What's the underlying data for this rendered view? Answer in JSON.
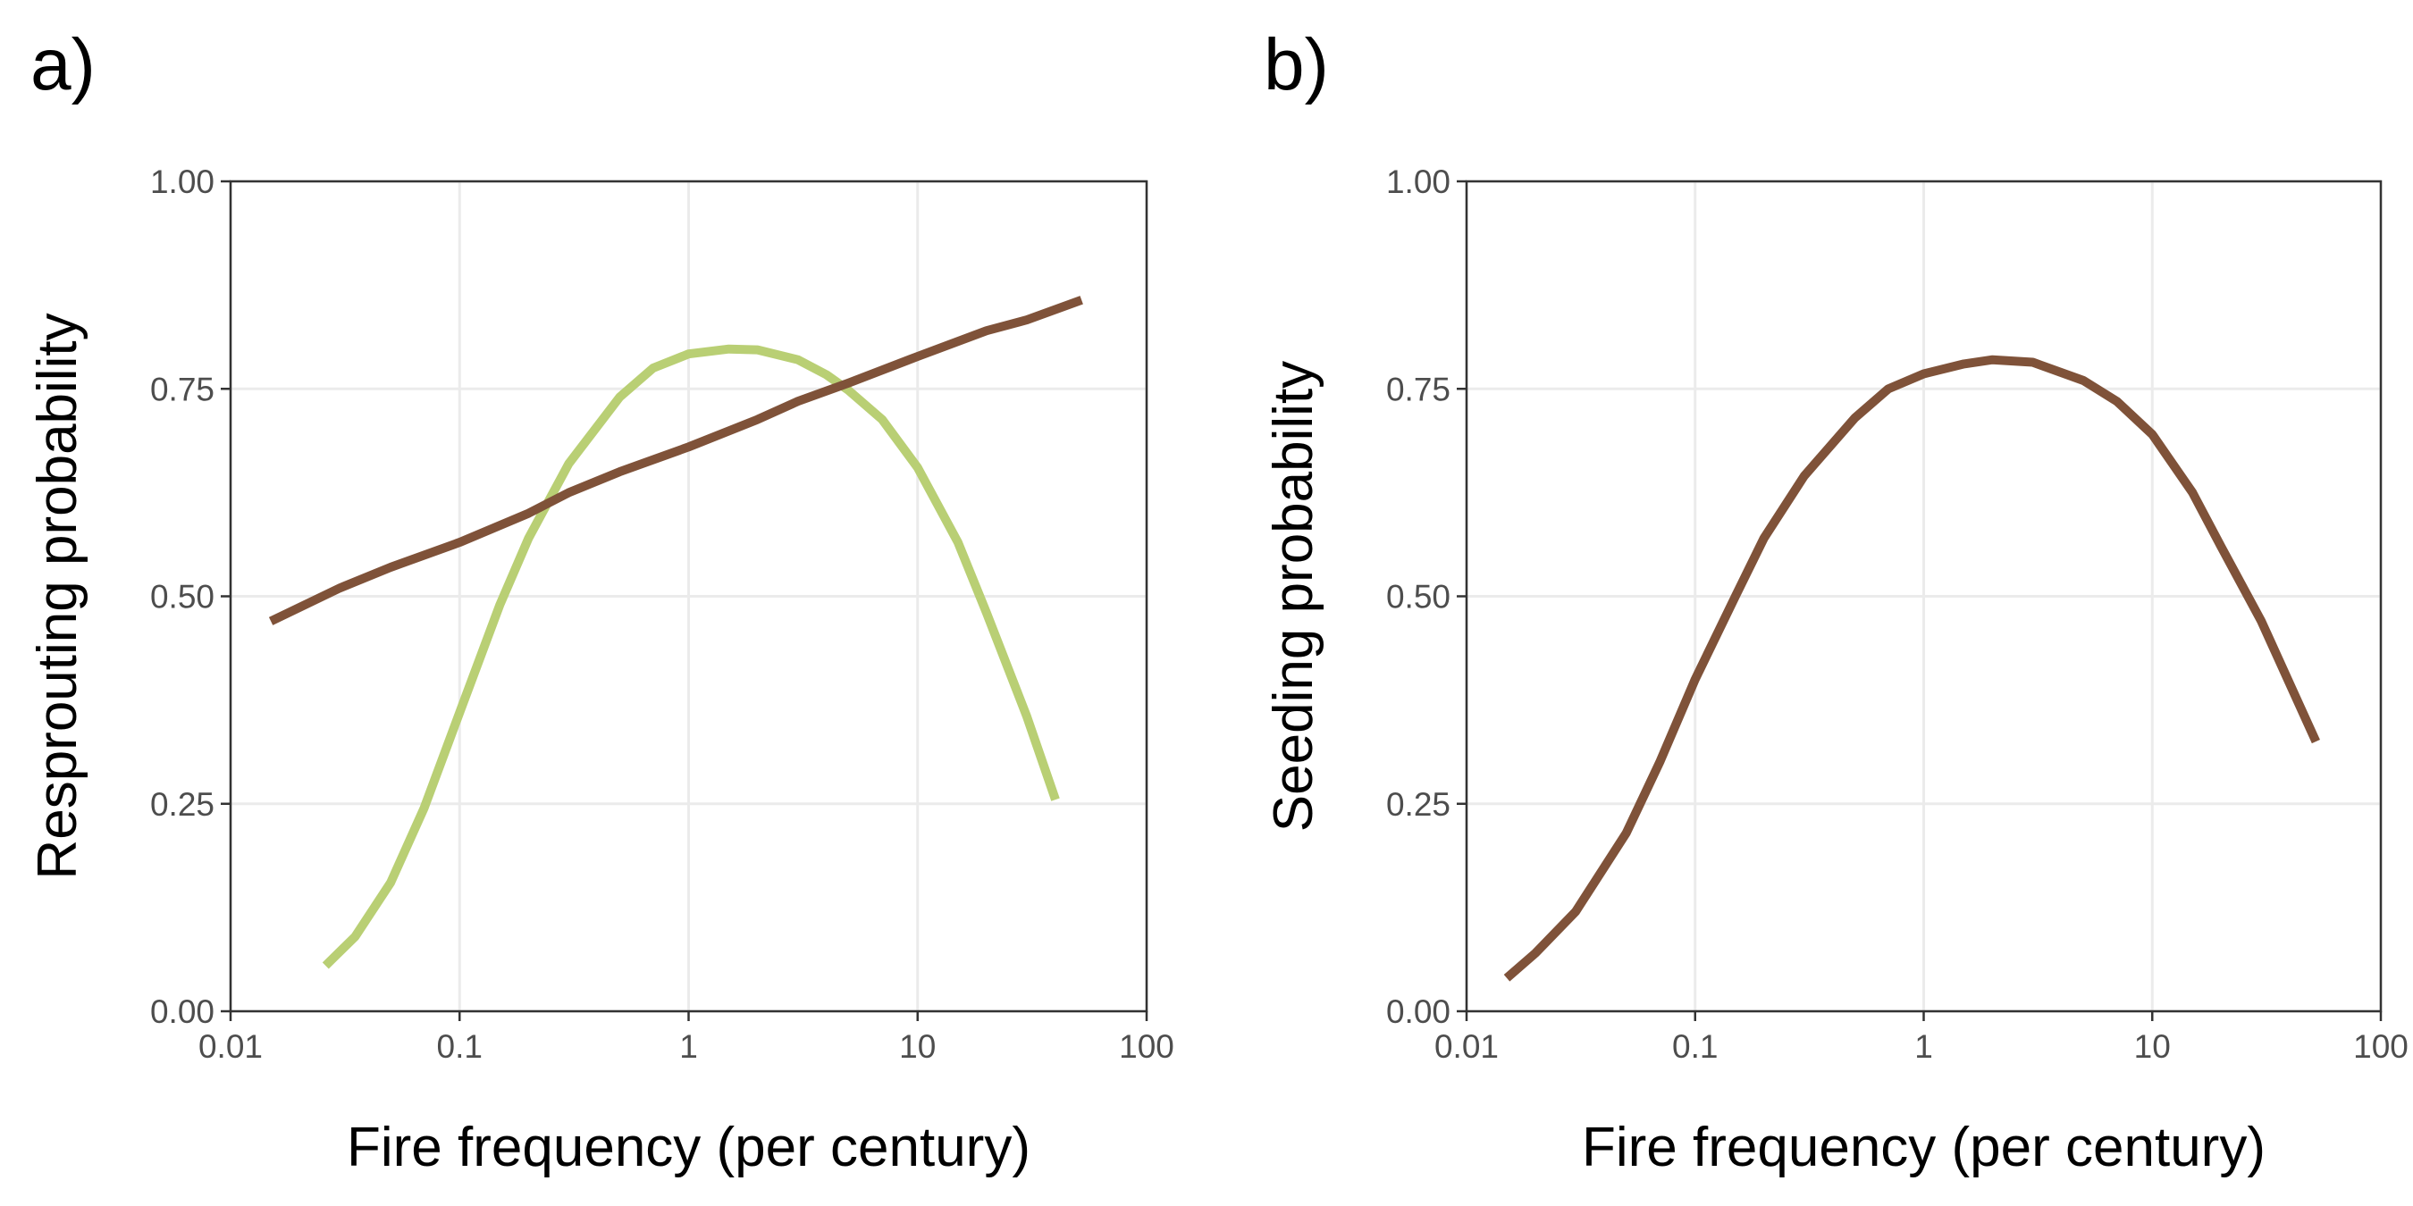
{
  "chart_data": [
    {
      "type": "line",
      "panel_label": "a)",
      "xlabel": "Fire frequency (per century)",
      "ylabel": "Resprouting probability",
      "xscale": "log",
      "xlim": [
        0.01,
        100
      ],
      "ylim": [
        0,
        1
      ],
      "x_ticks": [
        0.01,
        0.1,
        1,
        10,
        100
      ],
      "x_tick_labels": [
        "0.01",
        "0.1",
        "1",
        "10",
        "100"
      ],
      "y_ticks": [
        0,
        0.25,
        0.5,
        0.75,
        1
      ],
      "y_tick_labels": [
        "0.00",
        "0.25",
        "0.50",
        "0.75",
        "1.00"
      ],
      "grid": true,
      "series": [
        {
          "color": "#b9cf74",
          "x": [
            0.026,
            0.035,
            0.05,
            0.07,
            0.1,
            0.15,
            0.2,
            0.3,
            0.5,
            0.7,
            1,
            1.5,
            2,
            3,
            4,
            5,
            7,
            10,
            15,
            20,
            30,
            40
          ],
          "y": [
            0.055,
            0.09,
            0.155,
            0.245,
            0.36,
            0.49,
            0.57,
            0.66,
            0.74,
            0.775,
            0.792,
            0.798,
            0.797,
            0.785,
            0.767,
            0.748,
            0.713,
            0.655,
            0.565,
            0.48,
            0.355,
            0.255
          ]
        },
        {
          "color": "#7f5239",
          "x": [
            0.015,
            0.03,
            0.05,
            0.1,
            0.2,
            0.3,
            0.5,
            1,
            2,
            3,
            5,
            10,
            20,
            30,
            52
          ],
          "y": [
            0.47,
            0.51,
            0.535,
            0.565,
            0.6,
            0.625,
            0.65,
            0.68,
            0.713,
            0.735,
            0.757,
            0.789,
            0.82,
            0.833,
            0.857
          ]
        }
      ]
    },
    {
      "type": "line",
      "panel_label": "b)",
      "xlabel": "Fire frequency (per century)",
      "ylabel": "Seeding probability",
      "xscale": "log",
      "xlim": [
        0.01,
        100
      ],
      "ylim": [
        0,
        1
      ],
      "x_ticks": [
        0.01,
        0.1,
        1,
        10,
        100
      ],
      "x_tick_labels": [
        "0.01",
        "0.1",
        "1",
        "10",
        "100"
      ],
      "y_ticks": [
        0,
        0.25,
        0.5,
        0.75,
        1
      ],
      "y_tick_labels": [
        "0.00",
        "0.25",
        "0.50",
        "0.75",
        "1.00"
      ],
      "grid": true,
      "series": [
        {
          "color": "#7f5239",
          "x": [
            0.015,
            0.02,
            0.03,
            0.05,
            0.07,
            0.1,
            0.15,
            0.2,
            0.3,
            0.5,
            0.7,
            1,
            1.5,
            2,
            3,
            5,
            7,
            10,
            15,
            20,
            30,
            52
          ],
          "y": [
            0.04,
            0.07,
            0.12,
            0.215,
            0.3,
            0.4,
            0.5,
            0.57,
            0.645,
            0.715,
            0.75,
            0.768,
            0.78,
            0.785,
            0.782,
            0.76,
            0.735,
            0.695,
            0.625,
            0.56,
            0.47,
            0.325
          ]
        }
      ]
    }
  ]
}
